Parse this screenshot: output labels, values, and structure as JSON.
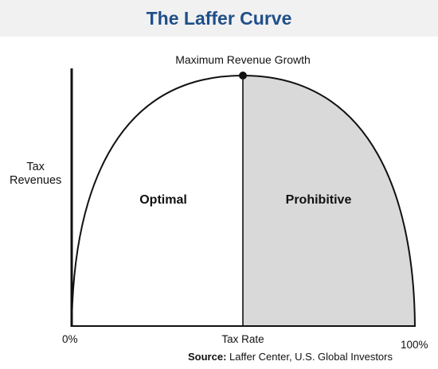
{
  "title": "The Laffer Curve",
  "peak_label": "Maximum Revenue Growth",
  "y_axis_label_lines": [
    "Tax",
    "Revenues"
  ],
  "x_axis_label": "Tax Rate",
  "x_ticks": [
    "0%",
    "100%"
  ],
  "regions": {
    "left": "Optimal",
    "right": "Prohibitive"
  },
  "source_prefix": "Source:",
  "source_text": " Laffer Center, U.S. Global Investors",
  "colors": {
    "title": "#1f4f8a",
    "title_bar": "#f1f1f1",
    "prohibitive_fill": "#d9d9d9",
    "line": "#111111"
  }
}
